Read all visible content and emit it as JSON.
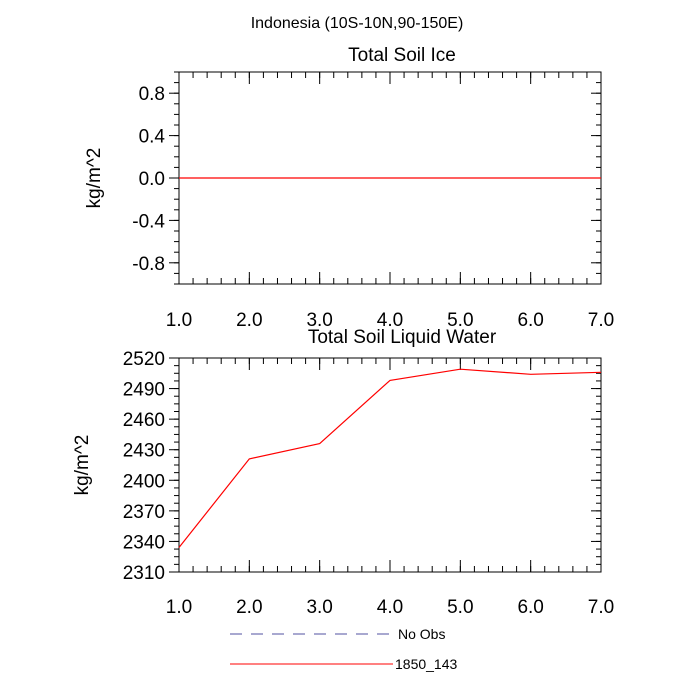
{
  "figure": {
    "title": "Indonesia (10S-10N,90-150E)"
  },
  "chart_data": [
    {
      "type": "line",
      "title": "Total Soil Ice",
      "xlabel": "",
      "ylabel": "kg/m^2",
      "xlim": [
        1,
        7
      ],
      "ylim": [
        -1,
        1
      ],
      "x_ticks": [
        1,
        2,
        3,
        4,
        5,
        6,
        7
      ],
      "x_tick_labels": [
        "1.0",
        "2.0",
        "3.0",
        "4.0",
        "5.0",
        "6.0",
        "7.0"
      ],
      "y_ticks": [
        -0.8,
        -0.4,
        0.0,
        0.4,
        0.8
      ],
      "y_tick_labels": [
        "-0.8",
        "-0.4",
        "0.0",
        "0.4",
        "0.8"
      ],
      "grid": false,
      "series": [
        {
          "name": "1850_143",
          "color": "#ff0000",
          "x": [
            1,
            2,
            3,
            4,
            5,
            6,
            7
          ],
          "values": [
            0,
            0,
            0,
            0,
            0,
            0,
            0
          ]
        }
      ]
    },
    {
      "type": "line",
      "title": "Total Soil Liquid Water",
      "xlabel": "",
      "ylabel": "kg/m^2",
      "xlim": [
        1,
        7
      ],
      "ylim": [
        2310,
        2520
      ],
      "x_ticks": [
        1,
        2,
        3,
        4,
        5,
        6,
        7
      ],
      "x_tick_labels": [
        "1.0",
        "2.0",
        "3.0",
        "4.0",
        "5.0",
        "6.0",
        "7.0"
      ],
      "y_ticks": [
        2310,
        2340,
        2370,
        2400,
        2430,
        2460,
        2490,
        2520
      ],
      "y_tick_labels": [
        "2310",
        "2340",
        "2370",
        "2400",
        "2430",
        "2460",
        "2490",
        "2520"
      ],
      "grid": false,
      "series": [
        {
          "name": "1850_143",
          "color": "#ff0000",
          "x": [
            1,
            2,
            3,
            4,
            5,
            6,
            7
          ],
          "values": [
            2334,
            2421,
            2436,
            2498,
            2509,
            2504,
            2506
          ]
        }
      ]
    }
  ],
  "legend": {
    "placement": "bottom-center",
    "items": [
      {
        "label": "No Obs",
        "color": "#5050a0",
        "style": "dashed"
      },
      {
        "label": "1850_143",
        "color": "#ff0000",
        "style": "solid"
      }
    ]
  }
}
